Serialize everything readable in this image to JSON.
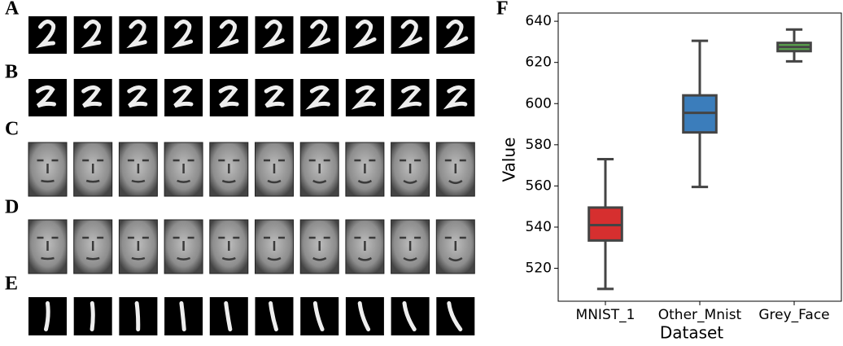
{
  "panel_labels": [
    "A",
    "B",
    "C",
    "D",
    "E"
  ],
  "chart_data": {
    "type": "box",
    "label": "F",
    "xlabel": "Dataset",
    "ylabel": "Value",
    "categories": [
      "MNIST_1",
      "Other_Mnist",
      "Grey_Face"
    ],
    "colors": [
      "#d62f2f",
      "#3b7dbb",
      "#5aa64c"
    ],
    "boxes": [
      {
        "whislo": 510,
        "q1": 533.5,
        "med": 541,
        "q3": 549.5,
        "whishi": 573
      },
      {
        "whislo": 559.5,
        "q1": 586,
        "med": 595.5,
        "q3": 604,
        "whishi": 630.5
      },
      {
        "whislo": 620.5,
        "q1": 625.5,
        "med": 627.5,
        "q3": 629.5,
        "whishi": 636
      }
    ],
    "ylim": [
      504,
      644
    ],
    "yticks": [
      520,
      540,
      560,
      580,
      600,
      620,
      640
    ]
  }
}
